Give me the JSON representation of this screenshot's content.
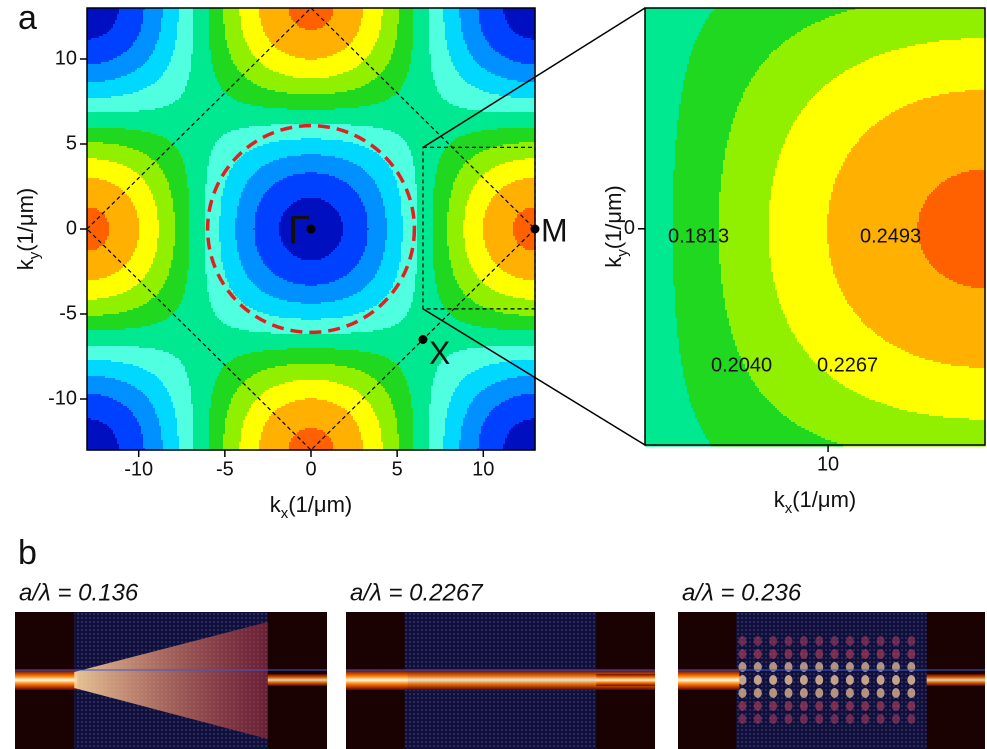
{
  "panel_a": {
    "label": "a",
    "brillouin": {
      "xlabel": {
        "symbol": "k",
        "sub": "x",
        "unit": "(1/μm)"
      },
      "ylabel": {
        "symbol": "k",
        "sub": "y",
        "unit": "(1/μm)"
      },
      "xlim": [
        -13,
        13
      ],
      "ylim": [
        -13,
        13
      ],
      "xticks": [
        -10,
        -5,
        0,
        5,
        10
      ],
      "yticks": [
        -10,
        -5,
        0,
        5,
        10
      ],
      "points": [
        {
          "label": "Γ",
          "x": 0,
          "y": 0
        },
        {
          "label": "M",
          "x": 13,
          "y": 0
        },
        {
          "label": "X",
          "x": 6.5,
          "y": -6.5
        }
      ]
    },
    "zoom": {
      "xlabel": {
        "symbol": "k",
        "sub": "x",
        "unit": "(1/μm)"
      },
      "ylabel": {
        "symbol": "k",
        "sub": "y",
        "unit": "(1/μm)"
      },
      "xlim": [
        6.5,
        13
      ],
      "ylim": [
        -4.7,
        4.8
      ],
      "xticks": [
        10
      ],
      "yticks": [
        0
      ],
      "contour_labels": [
        "0.1813",
        "0.2040",
        "0.2267",
        "0.2493"
      ]
    }
  },
  "panel_b": {
    "label": "b",
    "images": [
      {
        "title": "a/λ = 0.136"
      },
      {
        "title": "a/λ = 0.2267"
      },
      {
        "title": "a/λ = 0.236"
      }
    ]
  }
}
